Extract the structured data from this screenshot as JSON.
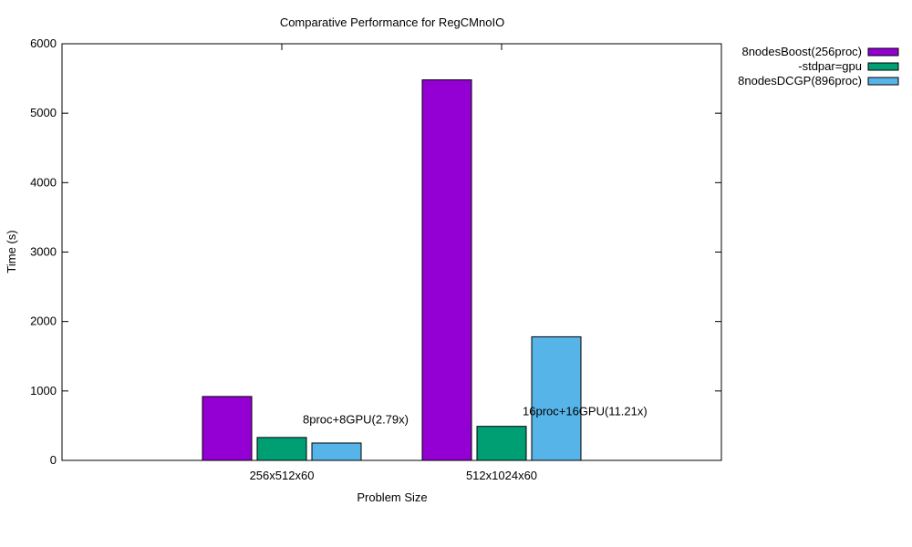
{
  "chart_data": {
    "type": "bar",
    "title": "Comparative Performance for RegCMnoIO",
    "xlabel": "Problem Size",
    "ylabel": "Time (s)",
    "categories": [
      "256x512x60",
      "512x1024x60"
    ],
    "series": [
      {
        "name": "8nodesBoost(256proc)",
        "color": "#9400d3",
        "values": [
          920,
          5480
        ]
      },
      {
        "name": "-stdpar=gpu",
        "color": "#009e73",
        "values": [
          330,
          490
        ]
      },
      {
        "name": "8nodesDCGP(896proc)",
        "color": "#56b4e9",
        "values": [
          250,
          1780
        ]
      }
    ],
    "ylim": [
      0,
      6000
    ],
    "yticks": [
      0,
      1000,
      2000,
      3000,
      4000,
      5000,
      6000
    ],
    "grid": false,
    "legend_position": "outside-top-right",
    "annotations": [
      {
        "text": "8proc+8GPU(2.79x)",
        "category": "256x512x60",
        "y": 530
      },
      {
        "text": "16proc+16GPU(11.21x)",
        "category": "512x1024x60",
        "y": 650
      }
    ]
  }
}
